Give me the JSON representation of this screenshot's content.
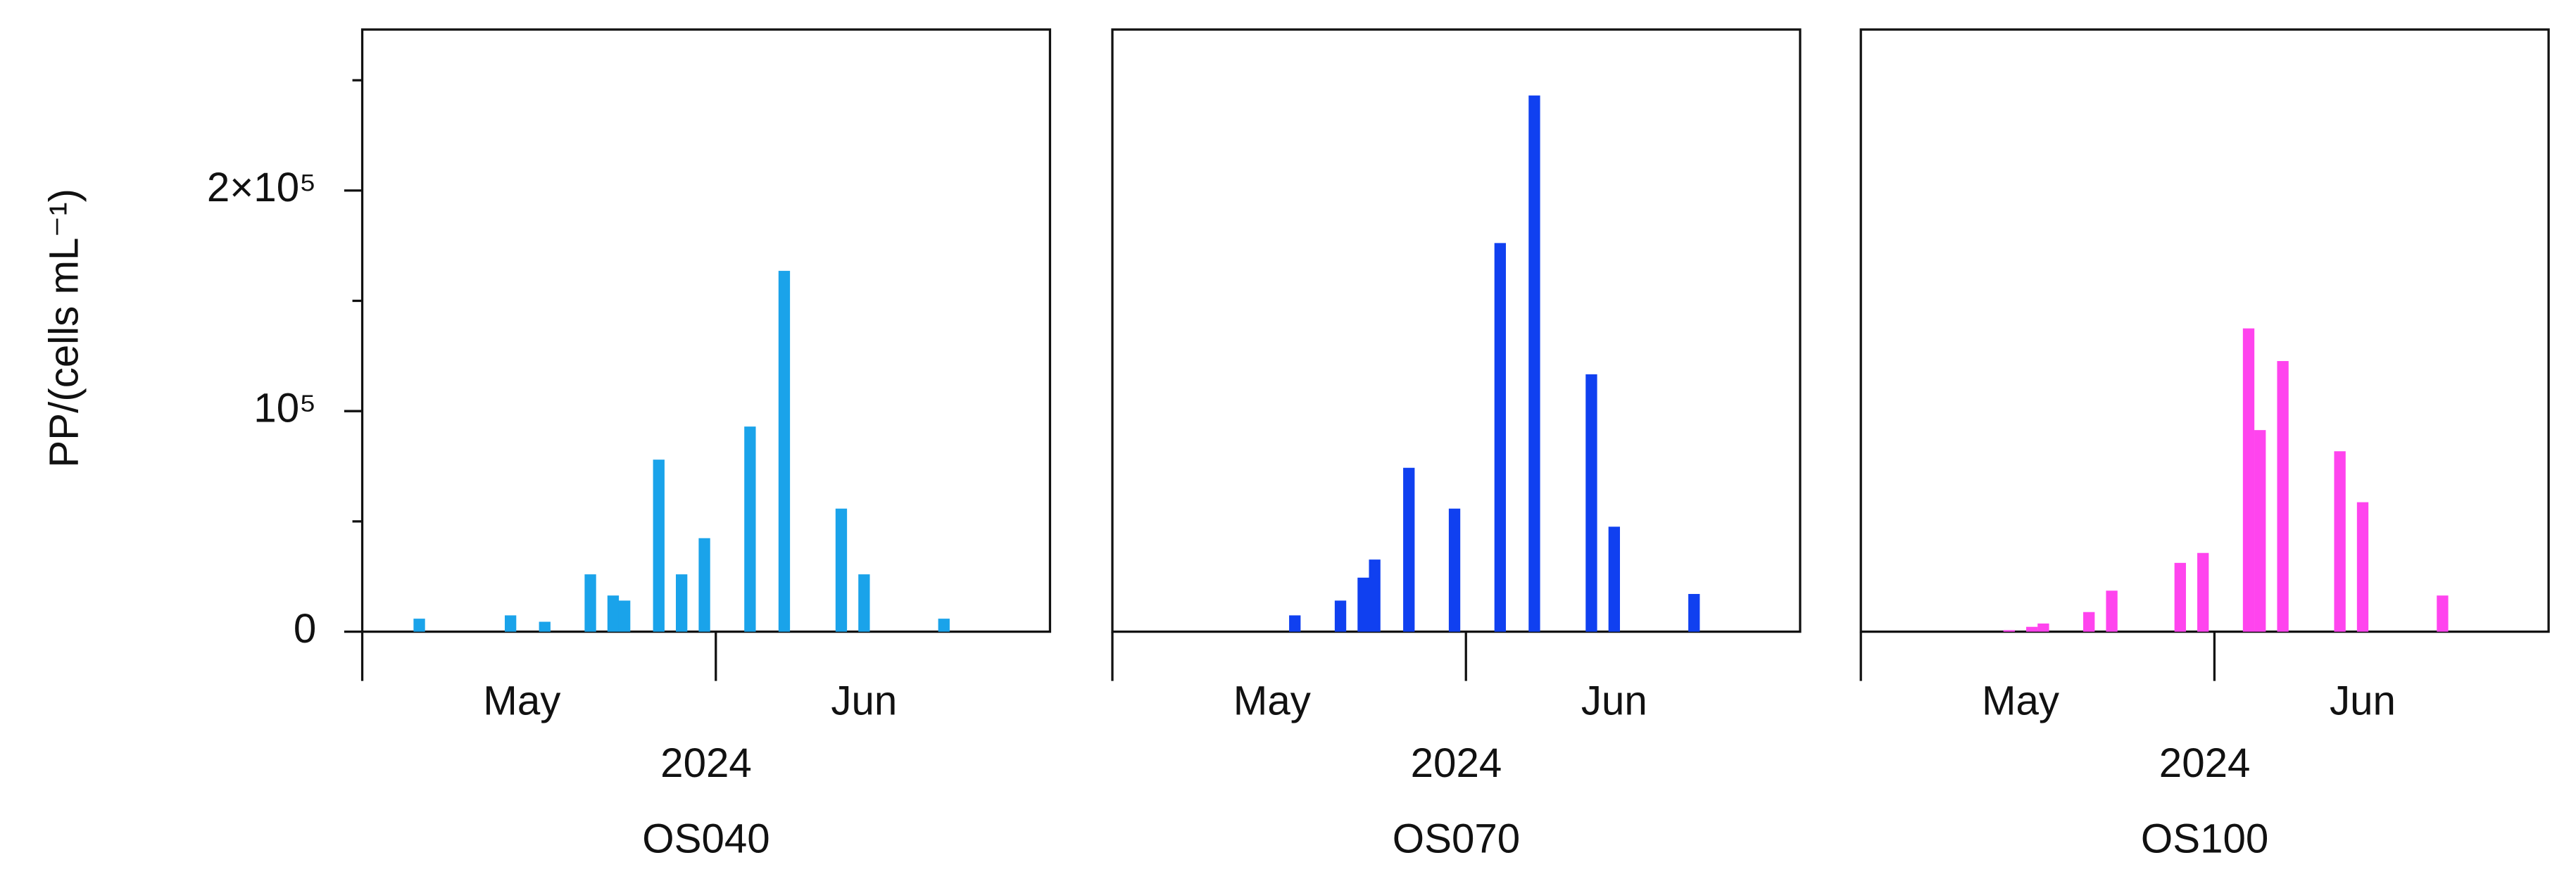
{
  "chart_data": [
    {
      "type": "bar",
      "title": "OS040",
      "xlabel": "2024",
      "ylabel": "PP/(cells mL⁻¹)",
      "color": "#1aa3ea",
      "x": [
        127,
        135,
        138,
        142,
        144,
        145,
        148,
        150,
        152,
        156,
        159,
        164,
        166,
        173
      ],
      "values": [
        5900,
        7400,
        4500,
        26000,
        16400,
        14100,
        78000,
        26000,
        42400,
        93000,
        163600,
        55800,
        26000,
        5900
      ],
      "xlim": [
        122,
        182.3
      ],
      "ylim": [
        0,
        273000
      ],
      "yticks": [
        0,
        {
          "value": 100000,
          "label": "10⁵"
        },
        {
          "value": 200000,
          "label": "2×10⁵"
        }
      ],
      "yminor": [
        50000,
        150000,
        250000
      ],
      "xticks": [
        {
          "value": 136,
          "label": "May"
        },
        {
          "value": 166,
          "label": "Jun"
        }
      ],
      "xmonth_starts": [
        122,
        153
      ]
    },
    {
      "type": "bar",
      "title": "OS070",
      "xlabel": "2024",
      "color": "#1040f0",
      "x": [
        138,
        142,
        144,
        145,
        148,
        152,
        156,
        159,
        164,
        166,
        173
      ],
      "values": [
        7400,
        14100,
        24500,
        32700,
        74300,
        55800,
        176200,
        243100,
        116700,
        47600,
        17100
      ],
      "xlim": [
        122,
        182.3
      ],
      "ylim": [
        0,
        273000
      ],
      "xticks": [
        {
          "value": 136,
          "label": "May"
        },
        {
          "value": 166,
          "label": "Jun"
        }
      ],
      "xmonth_starts": [
        122,
        153
      ]
    },
    {
      "type": "bar",
      "title": "OS100",
      "xlabel": "2024",
      "color": "#ff44ee",
      "x": [
        135,
        137,
        138,
        142,
        144,
        150,
        152,
        156,
        157,
        159,
        164,
        166,
        173
      ],
      "values": [
        700,
        2200,
        3700,
        8900,
        18600,
        31200,
        35700,
        137500,
        91400,
        122700,
        81800,
        58700,
        16400
      ],
      "xlim": [
        122,
        182.3
      ],
      "ylim": [
        0,
        273000
      ],
      "xticks": [
        {
          "value": 136,
          "label": "May"
        },
        {
          "value": 166,
          "label": "Jun"
        }
      ],
      "xmonth_starts": [
        122,
        153
      ]
    }
  ]
}
